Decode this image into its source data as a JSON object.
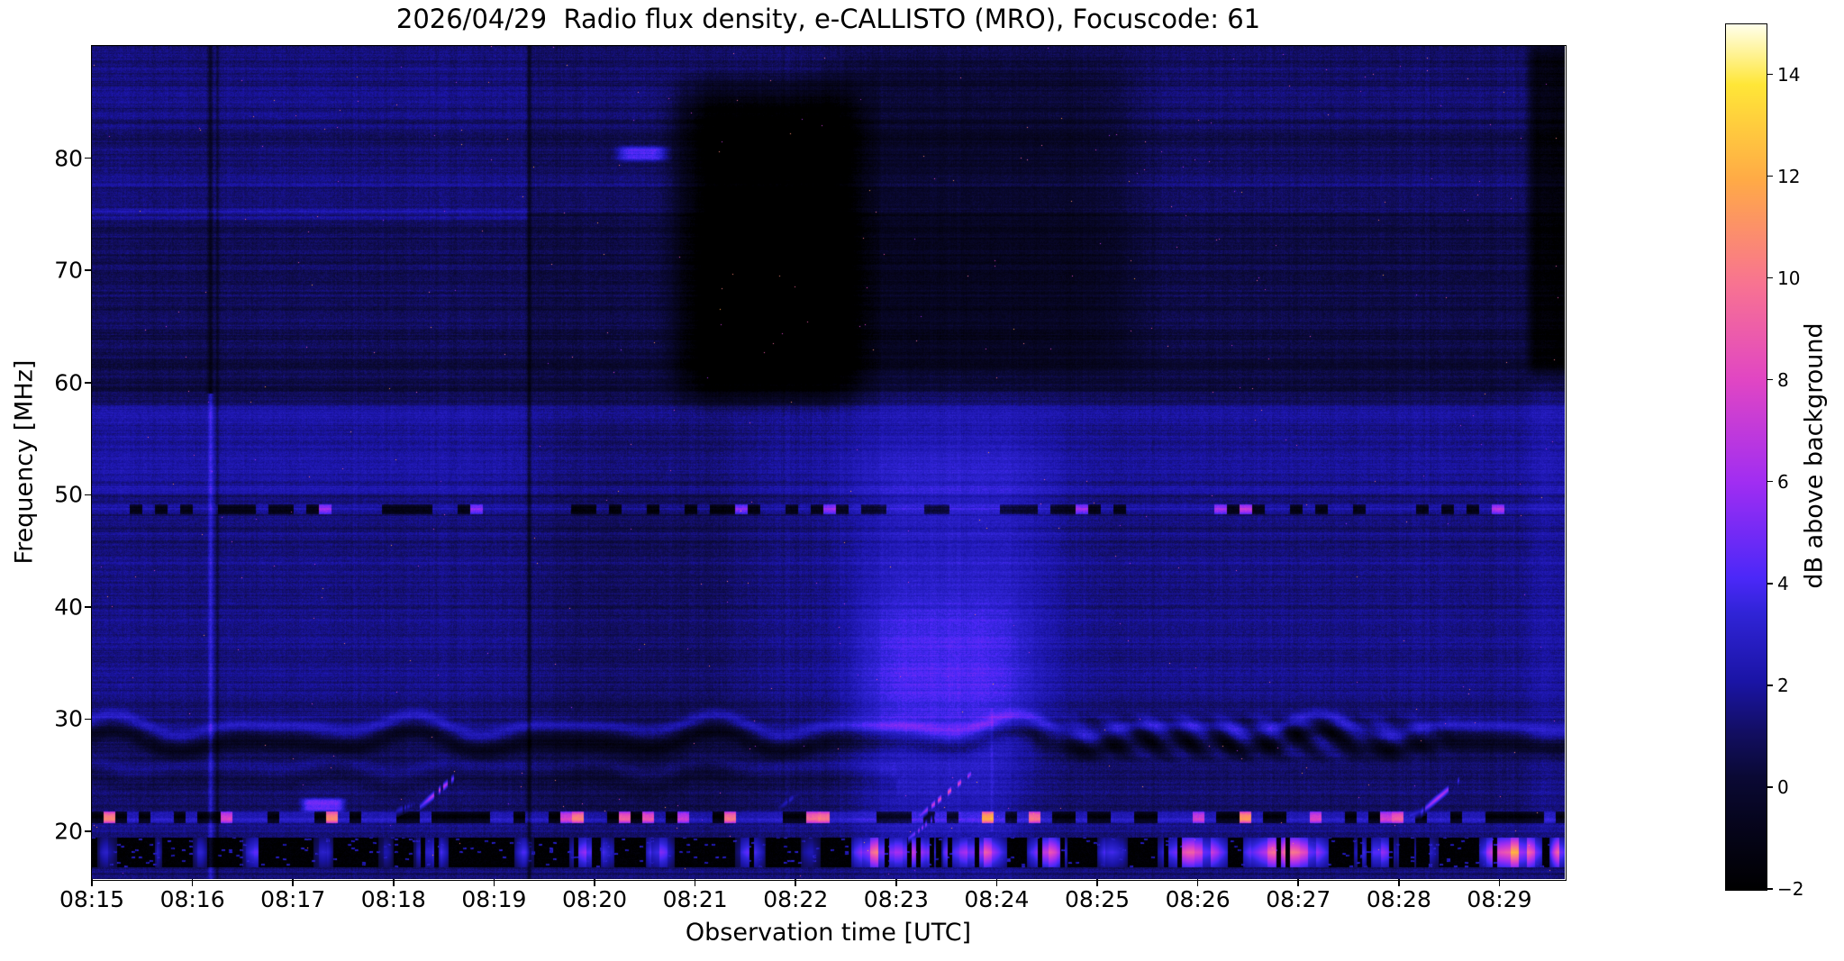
{
  "title": "2026/04/29  Radio flux density, e-CALLISTO (MRO), Focuscode: 61",
  "chart_data": {
    "type": "heatmap",
    "title": "2026/04/29  Radio flux density, e-CALLISTO (MRO), Focuscode: 61",
    "xlabel": "Observation time [UTC]",
    "ylabel": "Frequency [MHz]",
    "colorbar_label": "dB above background",
    "x_ticks": [
      {
        "label": "08:15",
        "minute": 0
      },
      {
        "label": "08:16",
        "minute": 1
      },
      {
        "label": "08:17",
        "minute": 2
      },
      {
        "label": "08:18",
        "minute": 3
      },
      {
        "label": "08:19",
        "minute": 4
      },
      {
        "label": "08:20",
        "minute": 5
      },
      {
        "label": "08:21",
        "minute": 6
      },
      {
        "label": "08:22",
        "minute": 7
      },
      {
        "label": "08:23",
        "minute": 8
      },
      {
        "label": "08:24",
        "minute": 9
      },
      {
        "label": "08:25",
        "minute": 10
      },
      {
        "label": "08:26",
        "minute": 11
      },
      {
        "label": "08:27",
        "minute": 12
      },
      {
        "label": "08:28",
        "minute": 13
      },
      {
        "label": "08:29",
        "minute": 14
      }
    ],
    "x_range_minutes": [
      0,
      14.65
    ],
    "y_ticks": [
      20,
      30,
      40,
      50,
      60,
      70,
      80
    ],
    "y_range_mhz": [
      15.75,
      90
    ],
    "colorbar_ticks": [
      {
        "value": 14,
        "label": "14"
      },
      {
        "value": 12,
        "label": "12"
      },
      {
        "value": 10,
        "label": "10"
      },
      {
        "value": 8,
        "label": "8"
      },
      {
        "value": 6,
        "label": "6"
      },
      {
        "value": 4,
        "label": "4"
      },
      {
        "value": 2,
        "label": "2"
      },
      {
        "value": 0,
        "label": "0"
      },
      {
        "value": -2,
        "label": "−2"
      }
    ],
    "colorbar_range_db": [
      -2,
      15
    ],
    "colormap_stops": [
      [
        0.0,
        [
          0,
          0,
          0
        ]
      ],
      [
        0.08,
        [
          6,
          5,
          30
        ]
      ],
      [
        0.13,
        [
          10,
          9,
          52
        ]
      ],
      [
        0.18,
        [
          18,
          14,
          96
        ]
      ],
      [
        0.24,
        [
          26,
          20,
          165
        ]
      ],
      [
        0.32,
        [
          48,
          36,
          215
        ]
      ],
      [
        0.36,
        [
          75,
          40,
          248
        ]
      ],
      [
        0.47,
        [
          160,
          45,
          242
        ]
      ],
      [
        0.59,
        [
          225,
          70,
          195
        ]
      ],
      [
        0.7,
        [
          248,
          115,
          145
        ]
      ],
      [
        0.82,
        [
          255,
          170,
          70
        ]
      ],
      [
        0.93,
        [
          255,
          230,
          55
        ]
      ],
      [
        1.0,
        [
          255,
          255,
          235
        ]
      ]
    ],
    "noise": {
      "base": 1.25,
      "row": 0.55,
      "col": 0.24,
      "pix": 0.42,
      "seed": 7
    },
    "features": {
      "bands": [
        {
          "f0": 83.5,
          "f1": 90.5,
          "dv": 0.25
        },
        {
          "f0": 77.6,
          "f1": 78.4,
          "dv": 0.6
        },
        {
          "f0": 62.0,
          "f1": 75.2,
          "dv": -0.4
        },
        {
          "f0": 58.0,
          "f1": 62.0,
          "dv": -0.6
        },
        {
          "f0": 50.0,
          "f1": 58.0,
          "dv": 0.55
        },
        {
          "f0": 44.5,
          "f1": 50.0,
          "dv": 0.15
        },
        {
          "f0": 31.5,
          "f1": 44.5,
          "dv": 0.35
        },
        {
          "f0": 23.0,
          "f1": 27.0,
          "dv": -0.15
        },
        {
          "f0": 19.6,
          "f1": 20.8,
          "dv": 0.45
        }
      ],
      "rects": [
        {
          "t0": -0.2,
          "t1": 4.35,
          "f0": 74.5,
          "f1": 75.4,
          "dv": 0.9,
          "st": 0.05,
          "sf": 0.2
        },
        {
          "t0": 4.35,
          "t1": 14.8,
          "f0": 60.0,
          "f1": 91.0,
          "dv": -0.35,
          "st": 0.05,
          "sf": 1.5
        },
        {
          "t0": 5.9,
          "t1": 7.6,
          "f0": 59.0,
          "f1": 86.0,
          "dv": -3.8,
          "st": 0.35,
          "sf": 3.0
        },
        {
          "t0": 7.4,
          "t1": 10.3,
          "f0": 61.0,
          "f1": 89.0,
          "dv": -1.1,
          "st": 0.5,
          "sf": 3.0
        },
        {
          "t0": 4.5,
          "t1": 6.5,
          "f0": 20.0,
          "f1": 58.0,
          "dv": -0.55,
          "st": 0.5,
          "sf": 4.0
        },
        {
          "t0": 7.6,
          "t1": 9.5,
          "f0": 26.0,
          "f1": 56.0,
          "dv": 1.3,
          "st": 0.55,
          "sf": 6.0
        },
        {
          "t0": 7.7,
          "t1": 9.2,
          "f0": 17.0,
          "f1": 40.0,
          "dv": 1.2,
          "st": 0.4,
          "sf": 5.0
        },
        {
          "t0": 14.3,
          "t1": 14.8,
          "f0": 61.0,
          "f1": 90.0,
          "dv": -2.4,
          "st": 0.08,
          "sf": 1.5
        },
        {
          "t0": 14.3,
          "t1": 14.8,
          "f0": 20.0,
          "f1": 61.0,
          "dv": 0.45,
          "st": 0.08,
          "sf": 2.0
        },
        {
          "t0": 5.25,
          "t1": 5.7,
          "f0": 79.8,
          "f1": 81.0,
          "dv": 3.2,
          "st": 0.1,
          "sf": 0.3
        },
        {
          "t0": 0.0,
          "t1": 4.35,
          "f0": 50.0,
          "f1": 58.0,
          "dv": 0.25,
          "st": 0.2,
          "sf": 1.0
        },
        {
          "t0": 2.1,
          "t1": 2.5,
          "f0": 21.8,
          "f1": 22.9,
          "dv": 3.6,
          "st": 0.06,
          "sf": 0.25
        }
      ],
      "vlines": [
        {
          "t": 1.18,
          "f0": 15.7,
          "f1": 59.0,
          "dv": 1.8,
          "w": 0.022
        },
        {
          "t": 1.18,
          "f0": 59.0,
          "f1": 91.0,
          "dv": -1.6,
          "w": 0.025
        },
        {
          "t": 1.25,
          "f0": 15.7,
          "f1": 91.0,
          "dv": -1.0,
          "w": 0.018
        },
        {
          "t": 4.35,
          "f0": 15.7,
          "f1": 91.0,
          "dv": -1.6,
          "w": 0.022
        },
        {
          "t": 8.95,
          "f0": 20.0,
          "f1": 31.0,
          "dv": 0.8,
          "w": 0.015
        }
      ],
      "wavy": [
        {
          "fc": 28.7,
          "amp": 1.0,
          "period": 1.5,
          "dvB": 1.5,
          "dvD": -1.6,
          "t0": -1,
          "t1": 15,
          "ph": 0.8
        },
        {
          "fc": 25.2,
          "amp": 0.7,
          "period": 1.25,
          "dvB": 0.5,
          "dvD": -0.5,
          "t0": -1,
          "t1": 8,
          "ph": 2.1
        }
      ],
      "herringbone": [
        {
          "t0": 9.3,
          "t1": 13.6,
          "f0": 26.0,
          "f1": 30.8,
          "period": 0.38,
          "dv": 1.25
        }
      ],
      "hdash": [
        {
          "f": 48.7,
          "h": 0.45,
          "per": 14,
          "duty": 0.45,
          "dvOn": -2.6,
          "dvOff": 0.7,
          "sprob": 0.05,
          "sdv": 5
        },
        {
          "f": 21.25,
          "h": 0.55,
          "per": 13,
          "duty": 0.42,
          "dvOn": -2.6,
          "dvOff": 1.6,
          "sprob": 0.16,
          "sdv": 8
        }
      ],
      "blackband": {
        "f0": 16.8,
        "f1": 19.45,
        "base": -1.85,
        "segments": [
          [
            0.05,
            0.25,
            3.5
          ],
          [
            0.55,
            0.7,
            2.5
          ],
          [
            1.0,
            1.15,
            2.8
          ],
          [
            1.5,
            1.75,
            3.8
          ],
          [
            2.2,
            2.4,
            3.0
          ],
          [
            2.85,
            3.0,
            2.5
          ],
          [
            3.2,
            3.55,
            4.2
          ],
          [
            4.2,
            4.4,
            3.2
          ],
          [
            4.75,
            5.2,
            5.0
          ],
          [
            5.5,
            5.8,
            4.5
          ],
          [
            6.4,
            6.7,
            4.2
          ],
          [
            7.05,
            7.25,
            3.6
          ],
          [
            7.55,
            8.4,
            9.5
          ],
          [
            8.45,
            9.1,
            8.5
          ],
          [
            9.3,
            9.7,
            7.0
          ],
          [
            10.0,
            10.3,
            5.0
          ],
          [
            10.6,
            11.3,
            8.5
          ],
          [
            11.45,
            12.3,
            8.5
          ],
          [
            12.55,
            13.0,
            6.5
          ],
          [
            13.15,
            13.4,
            5.0
          ],
          [
            13.8,
            14.45,
            10.5
          ],
          [
            14.5,
            14.7,
            8.0
          ]
        ]
      },
      "diagonals": [
        [
          3.28,
          22.3,
          3.62,
          24.9,
          7.5
        ],
        [
          3.0,
          21.7,
          3.2,
          22.4,
          3.0
        ],
        [
          8.25,
          21.5,
          8.78,
          25.4,
          9.0
        ],
        [
          8.1,
          19.2,
          8.4,
          21.3,
          6.0
        ],
        [
          6.85,
          22.2,
          7.02,
          23.3,
          3.0
        ],
        [
          13.22,
          21.7,
          13.58,
          24.4,
          7.0
        ],
        [
          13.0,
          21.0,
          13.25,
          21.9,
          3.5
        ]
      ]
    }
  }
}
